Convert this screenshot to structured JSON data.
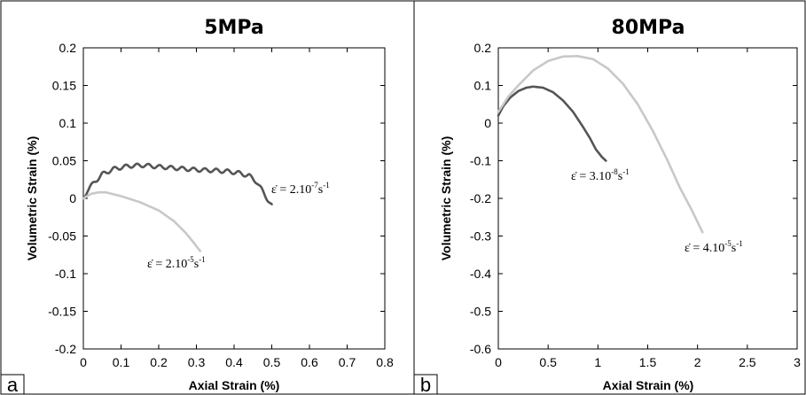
{
  "chart_data": [
    {
      "type": "line",
      "panel_label": "a",
      "title": "5MPa",
      "xlabel": "Axial Strain (%)",
      "ylabel": "Volumetric Strain (%)",
      "xlim": [
        0,
        0.8
      ],
      "ylim": [
        -0.2,
        0.2
      ],
      "x_ticks": [
        0,
        0.1,
        0.2,
        0.3,
        0.4,
        0.5,
        0.6,
        0.7,
        0.8
      ],
      "x_tick_labels": [
        "0",
        "0.1",
        "0.2",
        "0.3",
        "0.4",
        "0.5",
        "0.6",
        "0.7",
        "0.8"
      ],
      "y_ticks": [
        -0.2,
        -0.15,
        -0.1,
        -0.05,
        0,
        0.05,
        0.1,
        0.15,
        0.2
      ],
      "y_tick_labels": [
        "-0.2",
        "-0.15",
        "-0.1",
        "-0.05",
        "0",
        "0.05",
        "0.1",
        "0.15",
        "0.2"
      ],
      "grid": false,
      "series": [
        {
          "rate_label": "ε̇ = 2.10⁻⁷s⁻¹",
          "rate_base": "ε̇ = 2.10",
          "rate_exp": "-7",
          "rate_unit": "s",
          "rate_unit_exp": "-1",
          "color": "#555555",
          "wavy": true,
          "x": [
            0,
            0.01,
            0.03,
            0.05,
            0.08,
            0.12,
            0.16,
            0.2,
            0.25,
            0.3,
            0.35,
            0.38,
            0.41,
            0.44,
            0.46,
            0.48,
            0.5
          ],
          "y": [
            0,
            0.01,
            0.022,
            0.032,
            0.039,
            0.043,
            0.044,
            0.042,
            0.04,
            0.038,
            0.037,
            0.036,
            0.034,
            0.03,
            0.022,
            0.006,
            -0.01
          ]
        },
        {
          "rate_label": "ε̇ = 2.10⁻⁵s⁻¹",
          "rate_base": "ε̇ = 2.10",
          "rate_exp": "-5",
          "rate_unit": "s",
          "rate_unit_exp": "-1",
          "color": "#c8c8c8",
          "wavy": false,
          "x": [
            0,
            0.02,
            0.04,
            0.06,
            0.1,
            0.15,
            0.2,
            0.24,
            0.27,
            0.29,
            0.31
          ],
          "y": [
            0,
            0.006,
            0.008,
            0.008,
            0.003,
            -0.005,
            -0.016,
            -0.03,
            -0.045,
            -0.057,
            -0.07
          ]
        }
      ]
    },
    {
      "type": "line",
      "panel_label": "b",
      "title": "80MPa",
      "xlabel": "Axial Strain (%)",
      "ylabel": "Volumetric Strain (%)",
      "xlim": [
        0,
        3
      ],
      "ylim": [
        -0.6,
        0.2
      ],
      "x_ticks": [
        0,
        0.5,
        1,
        1.5,
        2,
        2.5,
        3
      ],
      "x_tick_labels": [
        "0",
        "0.5",
        "1",
        "1.5",
        "2",
        "2.5",
        "3"
      ],
      "y_ticks": [
        -0.6,
        -0.5,
        -0.4,
        -0.3,
        -0.2,
        -0.1,
        0,
        0.1,
        0.2
      ],
      "y_tick_labels": [
        "-0.6",
        "-0.5",
        "-0.4",
        "-0.3",
        "-0.2",
        "-0.1",
        "0",
        "0.1",
        "0.2"
      ],
      "grid": false,
      "series": [
        {
          "rate_label": "ε̇ = 3.10⁻⁸s⁻¹",
          "rate_base": "ε̇ = 3.10",
          "rate_exp": "-8",
          "rate_unit": "s",
          "rate_unit_exp": "-1",
          "color": "#555555",
          "wavy": false,
          "x": [
            0,
            0.05,
            0.12,
            0.2,
            0.28,
            0.35,
            0.45,
            0.55,
            0.65,
            0.75,
            0.85,
            0.92,
            0.98,
            1.04,
            1.08
          ],
          "y": [
            0.02,
            0.045,
            0.068,
            0.085,
            0.094,
            0.097,
            0.094,
            0.082,
            0.06,
            0.03,
            -0.01,
            -0.04,
            -0.07,
            -0.09,
            -0.1
          ]
        },
        {
          "rate_label": "ε̇ = 4.10⁻⁵s⁻¹",
          "rate_base": "ε̇ = 4.10",
          "rate_exp": "-5",
          "rate_unit": "s",
          "rate_unit_exp": "-1",
          "color": "#c8c8c8",
          "wavy": false,
          "x": [
            0,
            0.1,
            0.2,
            0.35,
            0.5,
            0.65,
            0.8,
            0.95,
            1.1,
            1.25,
            1.4,
            1.55,
            1.7,
            1.82,
            1.94,
            2.05
          ],
          "y": [
            0.03,
            0.07,
            0.1,
            0.14,
            0.165,
            0.177,
            0.178,
            0.17,
            0.145,
            0.105,
            0.05,
            -0.02,
            -0.1,
            -0.17,
            -0.23,
            -0.29
          ]
        }
      ]
    }
  ]
}
